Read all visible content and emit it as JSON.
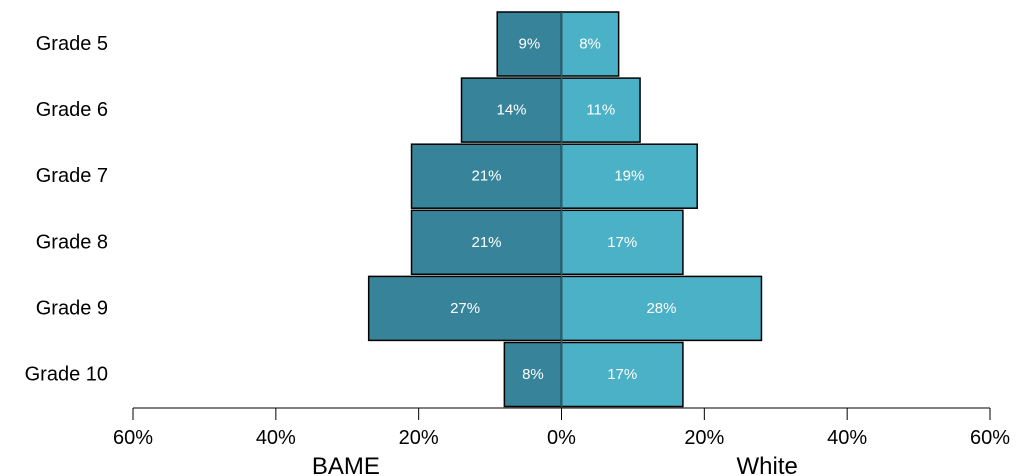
{
  "chart_data": {
    "type": "bar",
    "orientation": "horizontal",
    "layout": "population-pyramid",
    "categories": [
      "Grade 5",
      "Grade 6",
      "Grade 7",
      "Grade 8",
      "Grade 9",
      "Grade 10"
    ],
    "series": [
      {
        "name": "BAME",
        "side": "left",
        "color": "#37849a",
        "values": [
          9,
          14,
          21,
          21,
          27,
          8
        ],
        "labels": [
          "9%",
          "14%",
          "21%",
          "21%",
          "27%",
          "8%"
        ]
      },
      {
        "name": "White",
        "side": "right",
        "color": "#4bb1c6",
        "values": [
          8,
          11,
          19,
          17,
          28,
          17
        ],
        "labels": [
          "8%",
          "11%",
          "19%",
          "17%",
          "28%",
          "17%"
        ]
      }
    ],
    "xlim": [
      -60,
      60
    ],
    "xticks": [
      -60,
      -40,
      -20,
      0,
      20,
      40,
      60
    ],
    "xtick_labels": [
      "60%",
      "40%",
      "20%",
      "0%",
      "20%",
      "40%",
      "60%"
    ],
    "grid": false,
    "legend": "none"
  }
}
